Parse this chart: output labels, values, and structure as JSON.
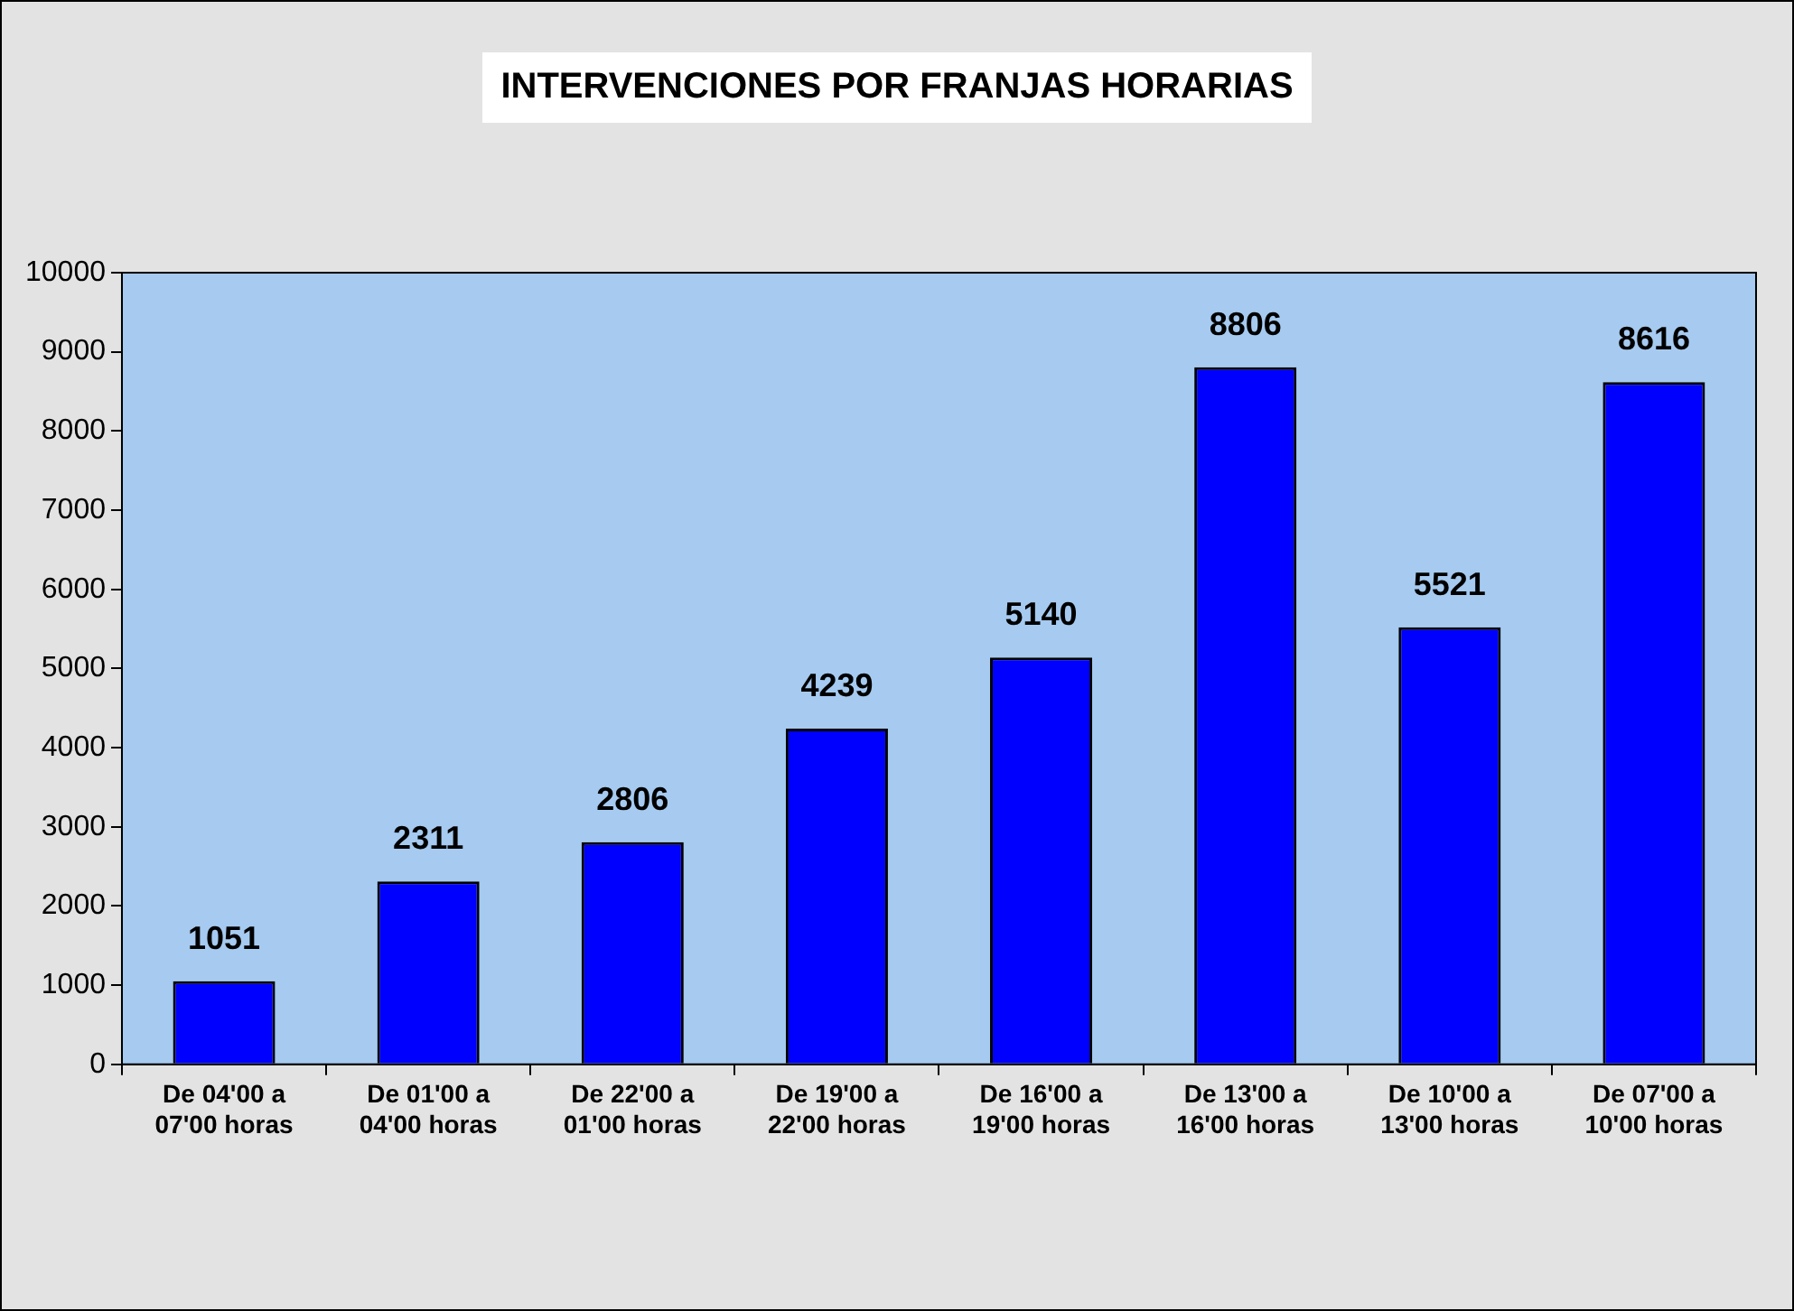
{
  "chart_data": {
    "type": "bar",
    "title": "INTERVENCIONES POR FRANJAS HORARIAS",
    "categories": [
      "De 04'00 a 07'00 horas",
      "De 01'00 a 04'00 horas",
      "De 22'00 a 01'00 horas",
      "De 19'00 a 22'00 horas",
      "De 16'00 a 19'00 horas",
      "De 13'00 a 16'00 horas",
      "De 10'00 a 13'00 horas",
      "De 07'00 a 10'00 horas"
    ],
    "values": [
      1051,
      2311,
      2806,
      4239,
      5140,
      8806,
      5521,
      8616
    ],
    "color": "#0000ff",
    "ylim": [
      0,
      10000
    ],
    "yticks": [
      0,
      1000,
      2000,
      3000,
      4000,
      5000,
      6000,
      7000,
      8000,
      9000,
      10000
    ],
    "data_labels": true,
    "grid": false,
    "legend": false
  }
}
